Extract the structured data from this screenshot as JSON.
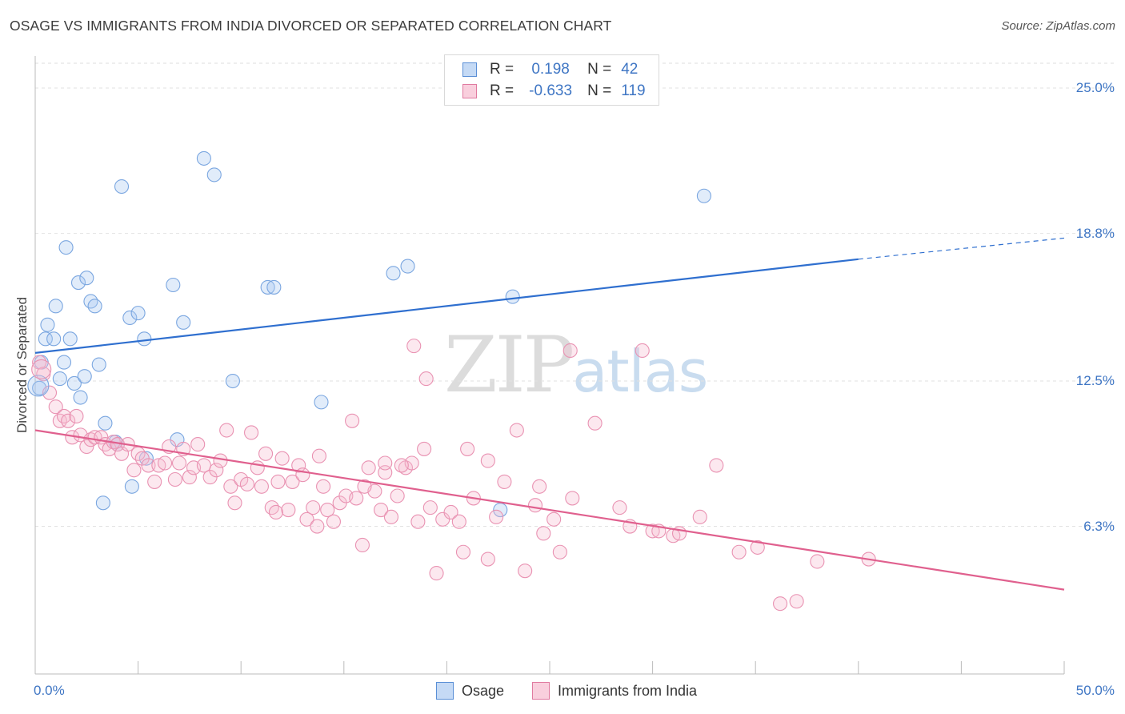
{
  "title": "OSAGE VS IMMIGRANTS FROM INDIA DIVORCED OR SEPARATED CORRELATION CHART",
  "source": "Source: ZipAtlas.com",
  "watermark": {
    "zip": "ZIP",
    "atlas": "atlas"
  },
  "legend": {
    "r_label": "R =",
    "n_label": "N =",
    "series": [
      {
        "name": "Osage",
        "r": "0.198",
        "n": "42",
        "color": "#a9c8f0",
        "stroke": "#5a8fd6"
      },
      {
        "name": "Immigrants from India",
        "r": "-0.633",
        "n": "119",
        "color": "#f7bcd0",
        "stroke": "#e07aa0"
      }
    ]
  },
  "chart_data": {
    "type": "scatter",
    "title": "OSAGE VS IMMIGRANTS FROM INDIA DIVORCED OR SEPARATED CORRELATION CHART",
    "xlabel": "",
    "ylabel": "Divorced or Separated",
    "xlim": [
      0,
      50
    ],
    "ylim": [
      0,
      26.3
    ],
    "x_tick_labels": [
      "0.0%",
      "50.0%"
    ],
    "y_ticks": [
      6.3,
      12.5,
      18.8,
      25.0
    ],
    "y_tick_labels": [
      "6.3%",
      "12.5%",
      "18.8%",
      "25.0%"
    ],
    "grid": true,
    "legend_position": "top-center",
    "series": [
      {
        "name": "Osage",
        "color": "#5a8fd6",
        "trend": {
          "x": [
            0,
            40
          ],
          "y": [
            13.7,
            17.7
          ],
          "dashed_to": [
            50,
            18.6
          ]
        },
        "points": [
          [
            0.2,
            12.2
          ],
          [
            0.3,
            13.3
          ],
          [
            0.5,
            14.3
          ],
          [
            0.6,
            14.9
          ],
          [
            0.9,
            14.3
          ],
          [
            1.0,
            15.7
          ],
          [
            1.2,
            12.6
          ],
          [
            1.4,
            13.3
          ],
          [
            1.5,
            18.2
          ],
          [
            1.7,
            14.3
          ],
          [
            1.9,
            12.4
          ],
          [
            2.1,
            16.7
          ],
          [
            2.2,
            11.8
          ],
          [
            2.4,
            12.7
          ],
          [
            2.5,
            16.9
          ],
          [
            2.7,
            15.9
          ],
          [
            2.9,
            15.7
          ],
          [
            3.1,
            13.2
          ],
          [
            3.3,
            7.3
          ],
          [
            3.4,
            10.7
          ],
          [
            3.9,
            9.9
          ],
          [
            4.2,
            20.8
          ],
          [
            4.6,
            15.2
          ],
          [
            4.7,
            8.0
          ],
          [
            5.0,
            15.4
          ],
          [
            5.3,
            14.3
          ],
          [
            6.7,
            16.6
          ],
          [
            6.9,
            10.0
          ],
          [
            7.2,
            15.0
          ],
          [
            8.2,
            22.0
          ],
          [
            8.7,
            21.3
          ],
          [
            9.6,
            12.5
          ],
          [
            11.3,
            16.5
          ],
          [
            11.6,
            16.5
          ],
          [
            13.9,
            11.6
          ],
          [
            17.4,
            17.1
          ],
          [
            18.1,
            17.4
          ],
          [
            22.6,
            7.0
          ],
          [
            23.2,
            16.1
          ],
          [
            32.5,
            20.4
          ],
          [
            4.0,
            9.8
          ],
          [
            5.4,
            9.2
          ]
        ]
      },
      {
        "name": "Immigrants from India",
        "color": "#e07aa0",
        "trend": {
          "x": [
            0,
            50
          ],
          "y": [
            10.4,
            3.6
          ]
        },
        "points": [
          [
            0.2,
            13.3
          ],
          [
            0.4,
            12.8
          ],
          [
            0.7,
            12.0
          ],
          [
            1.0,
            11.4
          ],
          [
            1.2,
            10.8
          ],
          [
            1.4,
            11.0
          ],
          [
            1.6,
            10.8
          ],
          [
            1.8,
            10.1
          ],
          [
            2.0,
            11.0
          ],
          [
            2.2,
            10.2
          ],
          [
            2.5,
            9.7
          ],
          [
            2.7,
            10.0
          ],
          [
            2.9,
            10.1
          ],
          [
            3.2,
            10.1
          ],
          [
            3.4,
            9.8
          ],
          [
            3.6,
            9.6
          ],
          [
            3.8,
            9.9
          ],
          [
            4.0,
            9.8
          ],
          [
            4.2,
            9.4
          ],
          [
            4.5,
            9.8
          ],
          [
            4.8,
            8.7
          ],
          [
            5.0,
            9.4
          ],
          [
            5.2,
            9.2
          ],
          [
            5.5,
            8.9
          ],
          [
            5.8,
            8.2
          ],
          [
            6.0,
            8.9
          ],
          [
            6.3,
            9.0
          ],
          [
            6.5,
            9.7
          ],
          [
            6.8,
            8.3
          ],
          [
            7.0,
            9.0
          ],
          [
            7.2,
            9.6
          ],
          [
            7.5,
            8.4
          ],
          [
            7.7,
            8.8
          ],
          [
            7.9,
            9.8
          ],
          [
            8.2,
            8.9
          ],
          [
            8.5,
            8.4
          ],
          [
            8.8,
            8.7
          ],
          [
            9.0,
            9.1
          ],
          [
            9.3,
            10.4
          ],
          [
            9.5,
            8.0
          ],
          [
            9.7,
            7.3
          ],
          [
            10.0,
            8.3
          ],
          [
            10.3,
            8.1
          ],
          [
            10.5,
            10.3
          ],
          [
            10.8,
            8.8
          ],
          [
            11.0,
            8.0
          ],
          [
            11.2,
            9.4
          ],
          [
            11.5,
            7.1
          ],
          [
            11.8,
            8.2
          ],
          [
            12.0,
            9.2
          ],
          [
            12.3,
            7.0
          ],
          [
            12.5,
            8.2
          ],
          [
            12.8,
            8.9
          ],
          [
            13.0,
            8.5
          ],
          [
            13.2,
            6.6
          ],
          [
            13.5,
            7.1
          ],
          [
            13.8,
            9.3
          ],
          [
            14.0,
            8.0
          ],
          [
            14.2,
            7.0
          ],
          [
            14.5,
            6.5
          ],
          [
            14.8,
            7.3
          ],
          [
            15.1,
            7.6
          ],
          [
            15.4,
            10.8
          ],
          [
            15.6,
            7.5
          ],
          [
            15.9,
            5.5
          ],
          [
            16.2,
            8.8
          ],
          [
            16.5,
            7.8
          ],
          [
            16.8,
            7.0
          ],
          [
            17.0,
            8.6
          ],
          [
            17.3,
            6.7
          ],
          [
            17.6,
            7.6
          ],
          [
            18.0,
            8.8
          ],
          [
            18.3,
            9.0
          ],
          [
            18.6,
            6.5
          ],
          [
            18.9,
            9.6
          ],
          [
            19.2,
            7.1
          ],
          [
            19.5,
            4.3
          ],
          [
            19.8,
            6.6
          ],
          [
            20.2,
            6.9
          ],
          [
            20.6,
            6.5
          ],
          [
            20.8,
            5.2
          ],
          [
            21.3,
            7.5
          ],
          [
            22.0,
            4.9
          ],
          [
            22.4,
            6.7
          ],
          [
            22.8,
            8.2
          ],
          [
            23.4,
            10.4
          ],
          [
            23.8,
            4.4
          ],
          [
            24.3,
            7.2
          ],
          [
            24.7,
            6.0
          ],
          [
            25.5,
            5.2
          ],
          [
            26.1,
            7.5
          ],
          [
            27.2,
            10.7
          ],
          [
            28.4,
            7.1
          ],
          [
            28.9,
            6.3
          ],
          [
            30.0,
            6.1
          ],
          [
            31.0,
            5.9
          ],
          [
            32.3,
            6.7
          ],
          [
            33.1,
            8.9
          ],
          [
            34.2,
            5.2
          ],
          [
            35.1,
            5.4
          ],
          [
            37.0,
            3.1
          ],
          [
            38.0,
            4.8
          ],
          [
            40.5,
            4.9
          ],
          [
            18.4,
            14.0
          ],
          [
            19.0,
            12.6
          ],
          [
            26.0,
            13.8
          ],
          [
            21.0,
            9.6
          ],
          [
            17.0,
            9.0
          ],
          [
            22.0,
            9.1
          ],
          [
            24.5,
            8.0
          ],
          [
            16.0,
            8.0
          ],
          [
            29.5,
            13.8
          ],
          [
            36.2,
            3.0
          ],
          [
            30.3,
            6.1
          ],
          [
            31.3,
            6.0
          ],
          [
            17.8,
            8.9
          ],
          [
            25.2,
            6.6
          ],
          [
            11.7,
            6.9
          ],
          [
            13.7,
            6.3
          ]
        ]
      }
    ]
  }
}
